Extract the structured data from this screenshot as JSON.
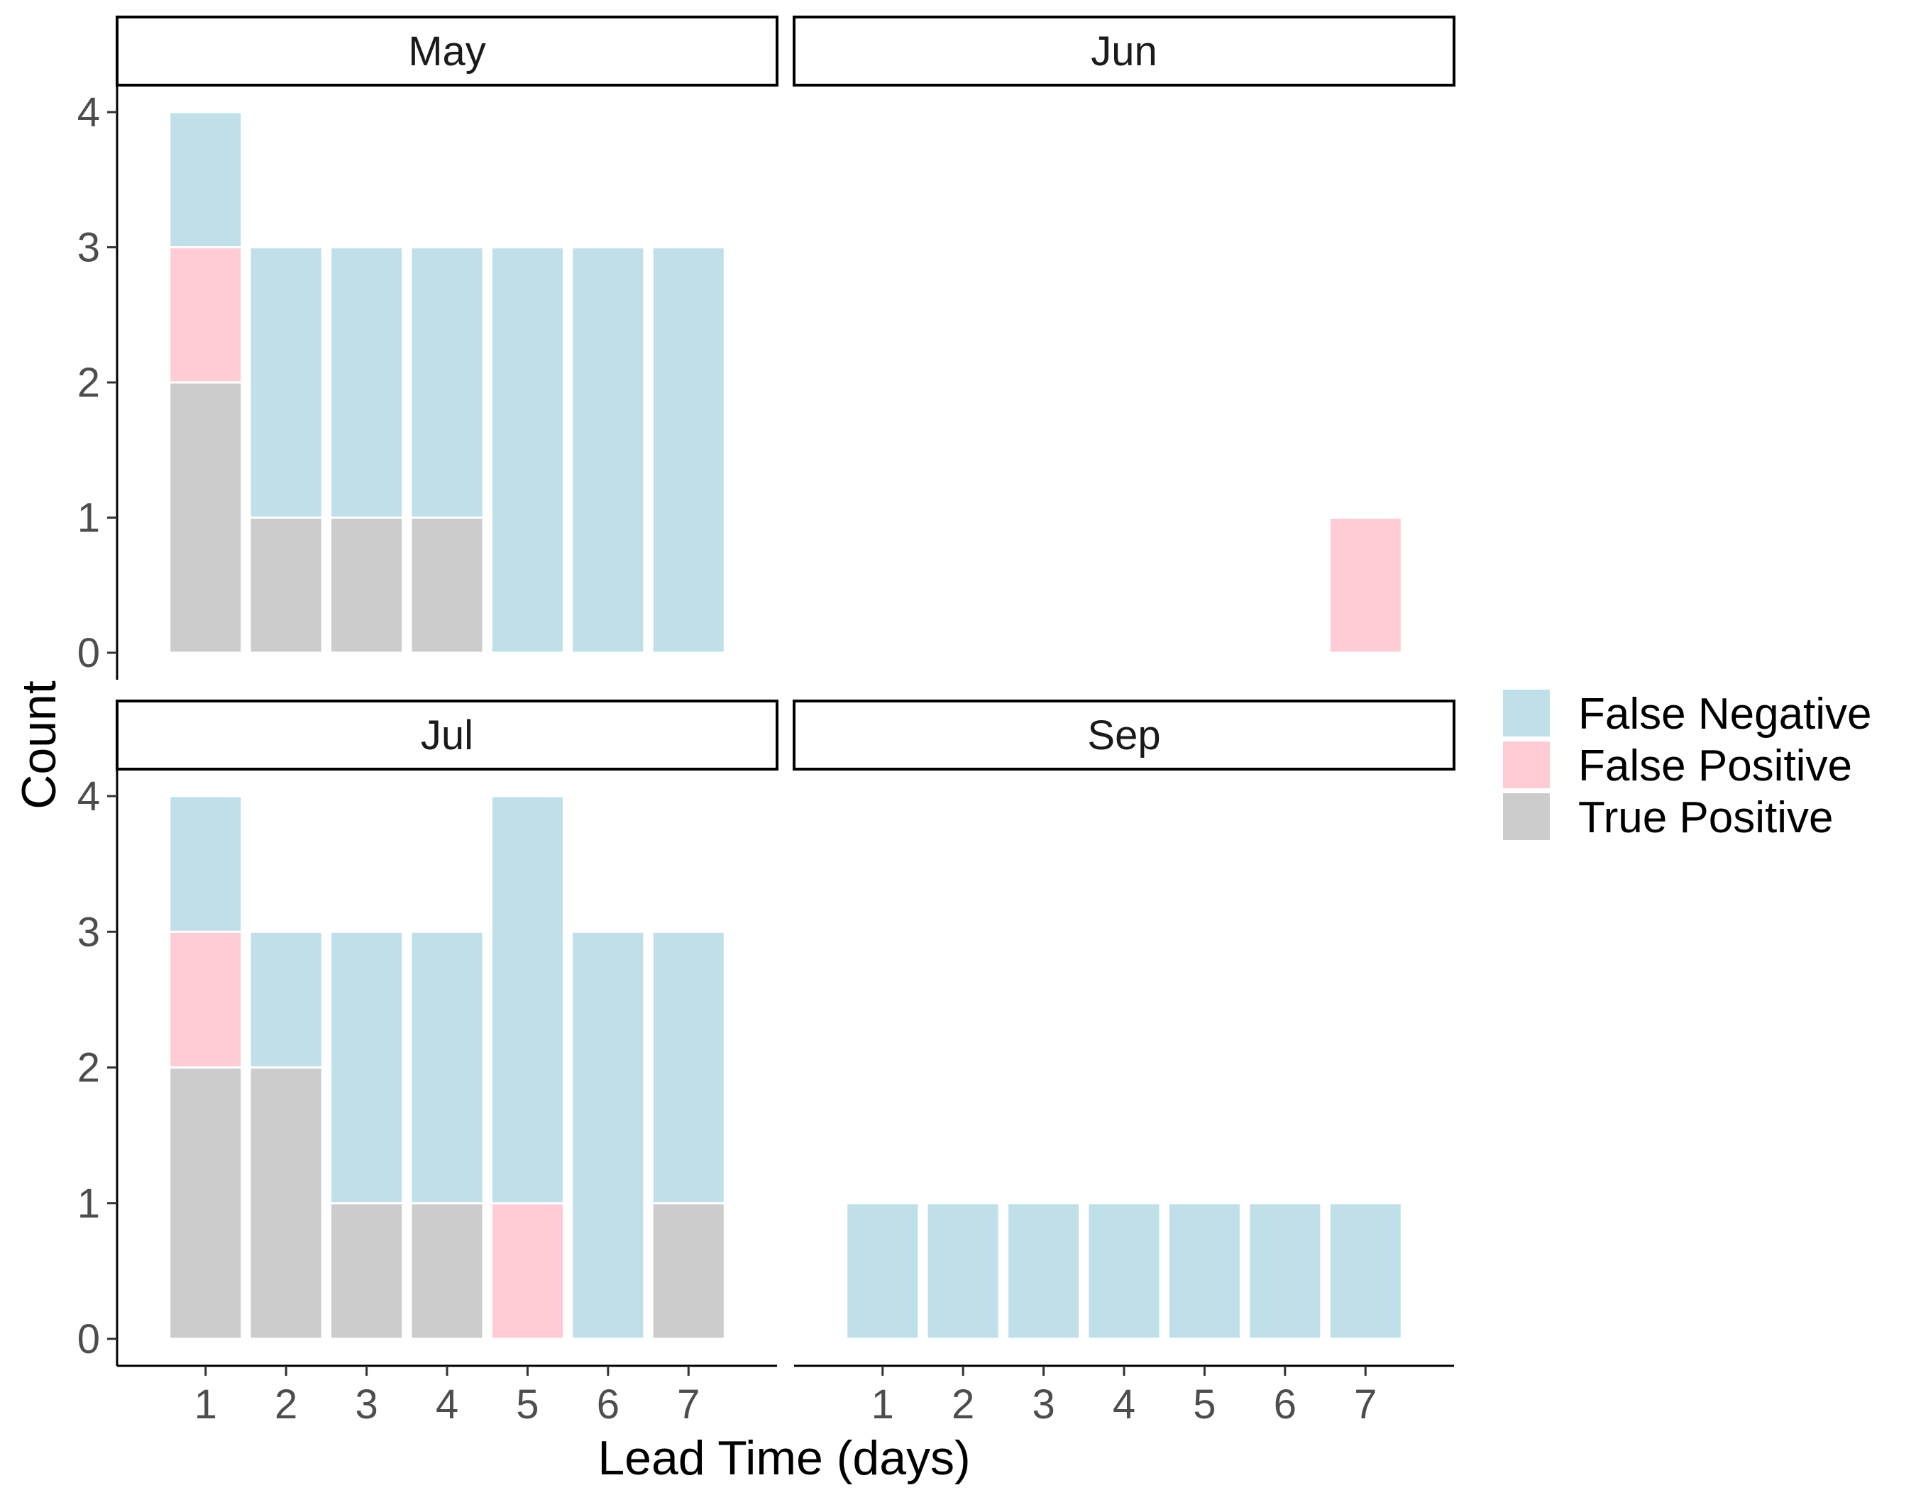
{
  "chart_data": {
    "type": "bar",
    "stacked": true,
    "facet_layout": "2x2",
    "xlabel": "Lead Time (days)",
    "ylabel": "Count",
    "x_ticks": [
      "1",
      "2",
      "3",
      "4",
      "5",
      "6",
      "7"
    ],
    "y_ticks": [
      "0",
      "1",
      "2",
      "3",
      "4"
    ],
    "ylim": [
      0,
      4
    ],
    "legend_placement": "right",
    "stack_order": [
      "True Positive",
      "False Positive",
      "False Negative"
    ],
    "series_colors": {
      "False Negative": "#bfe0e9",
      "False Positive": "#ffccd6",
      "True Positive": "#cccccc"
    },
    "legend": [
      {
        "name": "False Negative",
        "color": "#bfe0e9"
      },
      {
        "name": "False Positive",
        "color": "#ffccd6"
      },
      {
        "name": "True Positive",
        "color": "#cccccc"
      }
    ],
    "facets": [
      {
        "label": "May",
        "categories": [
          "1",
          "2",
          "3",
          "4",
          "5",
          "6",
          "7"
        ],
        "series": [
          {
            "name": "True Positive",
            "values": [
              2,
              1,
              1,
              1,
              0,
              0,
              0
            ]
          },
          {
            "name": "False Positive",
            "values": [
              1,
              0,
              0,
              0,
              0,
              0,
              0
            ]
          },
          {
            "name": "False Negative",
            "values": [
              1,
              2,
              2,
              2,
              3,
              3,
              3
            ]
          }
        ]
      },
      {
        "label": "Jun",
        "categories": [
          "1",
          "2",
          "3",
          "4",
          "5",
          "6",
          "7"
        ],
        "series": [
          {
            "name": "True Positive",
            "values": [
              0,
              0,
              0,
              0,
              0,
              0,
              0
            ]
          },
          {
            "name": "False Positive",
            "values": [
              0,
              0,
              0,
              0,
              0,
              0,
              1
            ]
          },
          {
            "name": "False Negative",
            "values": [
              0,
              0,
              0,
              0,
              0,
              0,
              0
            ]
          }
        ]
      },
      {
        "label": "Jul",
        "categories": [
          "1",
          "2",
          "3",
          "4",
          "5",
          "6",
          "7"
        ],
        "series": [
          {
            "name": "True Positive",
            "values": [
              2,
              2,
              1,
              1,
              0,
              0,
              1
            ]
          },
          {
            "name": "False Positive",
            "values": [
              1,
              0,
              0,
              0,
              1,
              0,
              0
            ]
          },
          {
            "name": "False Negative",
            "values": [
              1,
              1,
              2,
              2,
              3,
              3,
              2
            ]
          }
        ]
      },
      {
        "label": "Sep",
        "categories": [
          "1",
          "2",
          "3",
          "4",
          "5",
          "6",
          "7"
        ],
        "series": [
          {
            "name": "True Positive",
            "values": [
              0,
              0,
              0,
              0,
              0,
              0,
              0
            ]
          },
          {
            "name": "False Positive",
            "values": [
              0,
              0,
              0,
              0,
              0,
              0,
              0
            ]
          },
          {
            "name": "False Negative",
            "values": [
              1,
              1,
              1,
              1,
              1,
              1,
              1
            ]
          }
        ]
      }
    ]
  }
}
